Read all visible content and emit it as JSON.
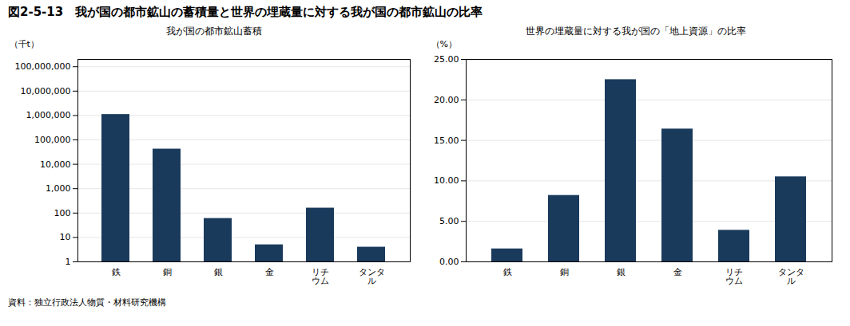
{
  "title": "図2-5-13　我が国の都市鉱山の蓄積量と世界の埋蔵量に対する我が国の都市鉱山の比率",
  "caption": "資料：独立行政法人物質・材料研究機構",
  "chart_data": [
    {
      "type": "bar",
      "title": "我が国の都市鉱山蓄積",
      "ylabel": "（千t）",
      "categories": [
        "鉄",
        "銅",
        "銀",
        "金",
        "リチ\nウム",
        "タンタ\nル"
      ],
      "values": [
        1100000,
        42000,
        60,
        5,
        160,
        4
      ],
      "color": "#1a3a5c",
      "log": "y",
      "grid": true,
      "ylim": [
        1,
        200000000
      ],
      "yticks": [
        1,
        10,
        100,
        {
          "value": 1000,
          "label": "1,000"
        },
        {
          "value": 10000,
          "label": "10,000"
        },
        {
          "value": 100000,
          "label": "100,000"
        },
        {
          "value": 1000000,
          "label": "1,000,000"
        },
        {
          "value": 10000000,
          "label": "10,000,000"
        },
        {
          "value": 100000000,
          "label": "100,000,000"
        }
      ]
    },
    {
      "type": "bar",
      "title": "世界の埋蔵量に対する我が国の「地上資源」の比率",
      "ylabel": "（%）",
      "categories": [
        "鉄",
        "銅",
        "銀",
        "金",
        "リチ\nウム",
        "タンタ\nル"
      ],
      "values": [
        1.6,
        8.2,
        22.5,
        16.4,
        3.9,
        10.5
      ],
      "color": "#1a3a5c",
      "grid": true,
      "ylim": [
        0,
        25
      ],
      "yticks": [
        {
          "value": 0,
          "label": "0.00"
        },
        {
          "value": 5,
          "label": "5.00"
        },
        {
          "value": 10,
          "label": "10.00"
        },
        {
          "value": 15,
          "label": "15.00"
        },
        {
          "value": 20,
          "label": "20.00"
        },
        {
          "value": 25,
          "label": "25.00"
        }
      ]
    }
  ]
}
